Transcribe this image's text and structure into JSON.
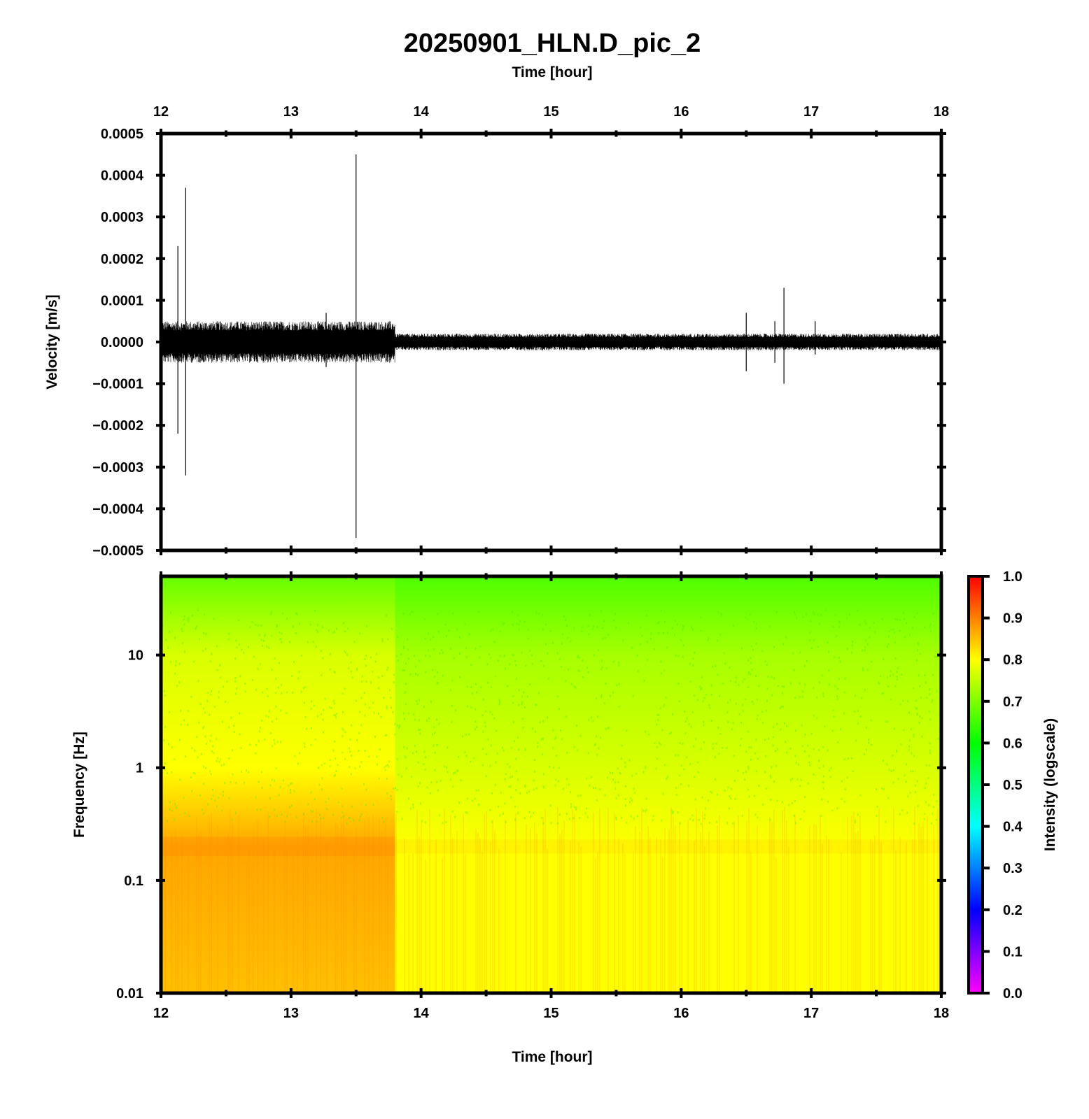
{
  "chart_data": [
    {
      "type": "line",
      "title": "20250901_HLN.D_pic_2",
      "xlabel": "Time [hour]",
      "ylabel": "Velocity [m/s]",
      "xlim": [
        12,
        18
      ],
      "ylim": [
        -0.0005,
        0.0005
      ],
      "x_ticks": [
        "12",
        "13",
        "14",
        "15",
        "16",
        "17",
        "18"
      ],
      "y_ticks": [
        "0.0005",
        "0.0004",
        "0.0003",
        "0.0002",
        "0.0001",
        "0.0000",
        "−0.0001",
        "−0.0002",
        "−0.0003",
        "−0.0004",
        "−0.0005"
      ],
      "noise_envelope": [
        {
          "x_start": 12.0,
          "x_end": 13.8,
          "amplitude": 5e-05
        },
        {
          "x_start": 13.8,
          "x_end": 18.0,
          "amplitude": 2e-05
        }
      ],
      "spikes": [
        {
          "x": 12.13,
          "max": 0.00023,
          "min": -0.00022
        },
        {
          "x": 12.19,
          "max": 0.00037,
          "min": -0.00032
        },
        {
          "x": 13.27,
          "max": 7e-05,
          "min": -6e-05
        },
        {
          "x": 13.5,
          "max": 0.00045,
          "min": -0.00047
        },
        {
          "x": 16.5,
          "max": 7e-05,
          "min": -7e-05
        },
        {
          "x": 16.72,
          "max": 5e-05,
          "min": -5e-05
        },
        {
          "x": 16.79,
          "max": 0.00013,
          "min": -0.0001
        },
        {
          "x": 17.03,
          "max": 5e-05,
          "min": -3e-05
        }
      ],
      "grid": false
    },
    {
      "type": "heatmap",
      "xlabel": "Time [hour]",
      "ylabel": "Frequency [Hz]",
      "xlim": [
        12,
        18
      ],
      "ylim": [
        0.01,
        50
      ],
      "y_scale": "log",
      "x_ticks": [
        "12",
        "13",
        "14",
        "15",
        "16",
        "17",
        "18"
      ],
      "y_ticks": [
        "10",
        "1",
        "0.1",
        "0.01"
      ],
      "colorbar": {
        "label": "Intensity (logscale)",
        "range": [
          0,
          1
        ],
        "ticks": [
          "1.0",
          "0.9",
          "0.8",
          "0.7",
          "0.6",
          "0.5",
          "0.4",
          "0.3",
          "0.2",
          "0.1",
          "0.0"
        ],
        "colormap": [
          "#ff00ff",
          "#8000ff",
          "#0000ff",
          "#0080ff",
          "#00ffff",
          "#00ff80",
          "#00ff00",
          "#80ff00",
          "#ffff00",
          "#ff8000",
          "#ff0000"
        ]
      },
      "intensity_profile": [
        {
          "frequency": 50,
          "value_before_13.8h": 0.68,
          "value_after_13.8h": 0.66
        },
        {
          "frequency": 10,
          "value_before_13.8h": 0.77,
          "value_after_13.8h": 0.73
        },
        {
          "frequency": 1,
          "value_before_13.8h": 0.8,
          "value_after_13.8h": 0.77
        },
        {
          "frequency": 0.2,
          "value_before_13.8h": 0.87,
          "value_after_13.8h": 0.8
        },
        {
          "frequency": 0.01,
          "value_before_13.8h": 0.85,
          "value_after_13.8h": 0.8
        }
      ]
    }
  ]
}
